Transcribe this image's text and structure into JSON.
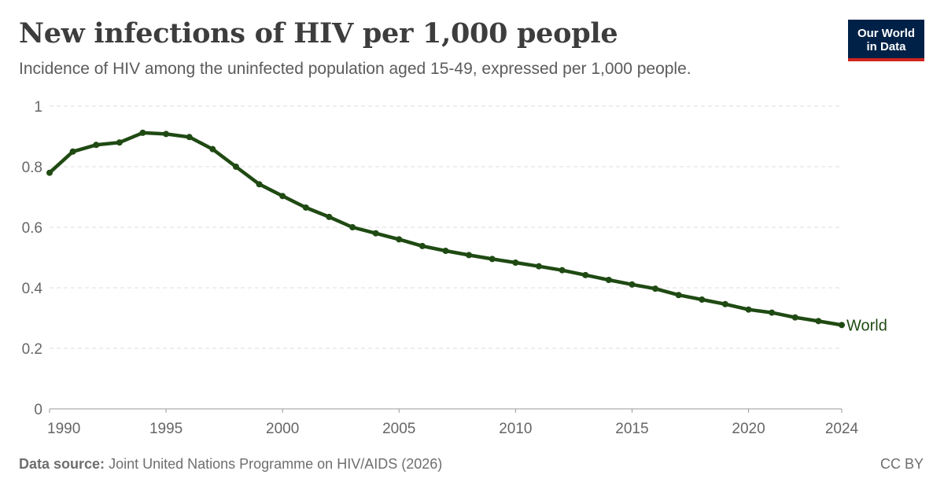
{
  "header": {
    "title": "New infections of HIV per 1,000 people",
    "subtitle": "Incidence of HIV among the uninfected population aged 15-49, expressed per 1,000 people."
  },
  "logo": {
    "line1": "Our World",
    "line2": "in Data"
  },
  "footer": {
    "source_label": "Data source:",
    "source_text": "Joint United Nations Programme on HIV/AIDS (2026)",
    "license": "CC BY"
  },
  "colors": {
    "series": "#1f4a13",
    "grid": "#dddddd",
    "axis": "#999999",
    "logo_bg": "#002147",
    "logo_accent": "#ce261e"
  },
  "chart_data": {
    "type": "line",
    "title": "New infections of HIV per 1,000 people",
    "subtitle": "Incidence of HIV among the uninfected population aged 15-49, expressed per 1,000 people.",
    "xlabel": "",
    "ylabel": "",
    "xlim": [
      1990,
      2024
    ],
    "ylim": [
      0,
      1
    ],
    "x_ticks": [
      1990,
      1995,
      2000,
      2005,
      2010,
      2015,
      2020,
      2024
    ],
    "y_ticks": [
      0,
      0.2,
      0.4,
      0.6,
      0.8,
      1
    ],
    "y_tick_labels": [
      "0",
      "0.2",
      "0.4",
      "0.6",
      "0.8",
      "1"
    ],
    "grid": "horizontal dashed",
    "legend": "inline label at line end",
    "series": [
      {
        "name": "World",
        "x": [
          1990,
          1991,
          1992,
          1993,
          1994,
          1995,
          1996,
          1997,
          1998,
          1999,
          2000,
          2001,
          2002,
          2003,
          2004,
          2005,
          2006,
          2007,
          2008,
          2009,
          2010,
          2011,
          2012,
          2013,
          2014,
          2015,
          2016,
          2017,
          2018,
          2019,
          2020,
          2021,
          2022,
          2023,
          2024
        ],
        "values": [
          0.78,
          0.85,
          0.872,
          0.88,
          0.912,
          0.908,
          0.898,
          0.858,
          0.8,
          0.742,
          0.703,
          0.665,
          0.634,
          0.6,
          0.58,
          0.56,
          0.538,
          0.522,
          0.508,
          0.495,
          0.483,
          0.471,
          0.458,
          0.442,
          0.426,
          0.411,
          0.397,
          0.376,
          0.361,
          0.346,
          0.328,
          0.318,
          0.302,
          0.29,
          0.277
        ]
      }
    ]
  }
}
